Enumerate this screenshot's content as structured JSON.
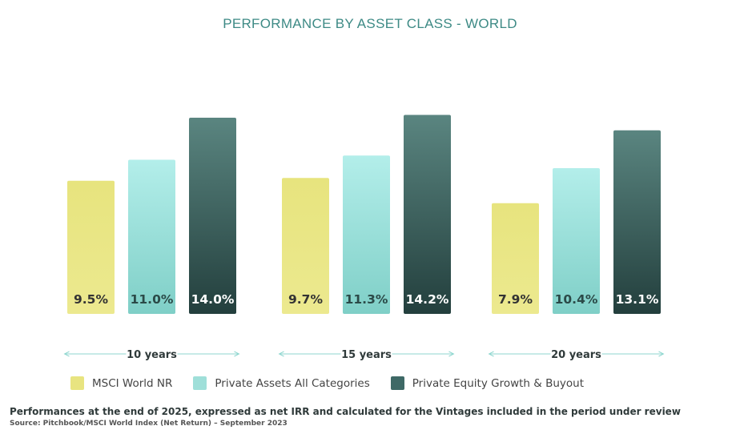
{
  "title": "PERFORMANCE BY ASSET CLASS - WORLD",
  "chart_data": {
    "type": "bar",
    "categories": [
      "10 years",
      "15 years",
      "20 years"
    ],
    "series": [
      {
        "name": "MSCI World NR",
        "values": [
          9.5,
          9.7,
          7.9
        ],
        "labels": [
          "9.5%",
          "9.7%",
          "7.9%"
        ],
        "color": "#e8e480"
      },
      {
        "name": "Private Assets All Categories",
        "values": [
          11.0,
          11.3,
          10.4
        ],
        "labels": [
          "11.0%",
          "11.3%",
          "10.4%"
        ],
        "color": "#a3e3de"
      },
      {
        "name": "Private Equity Growth & Buyout",
        "values": [
          14.0,
          14.2,
          13.1
        ],
        "labels": [
          "14.0%",
          "14.2%",
          "13.1%"
        ],
        "color": "#3e6966"
      }
    ],
    "xlabel": "",
    "ylabel": "",
    "grid": false,
    "legend": "bottom"
  },
  "footnote": "Performances at the end of 2025, expressed as net IRR and calculated for the Vintages included in the period under review",
  "source": "Source: Pitchbook/MSCI World Index (Net Return) – September 2023"
}
